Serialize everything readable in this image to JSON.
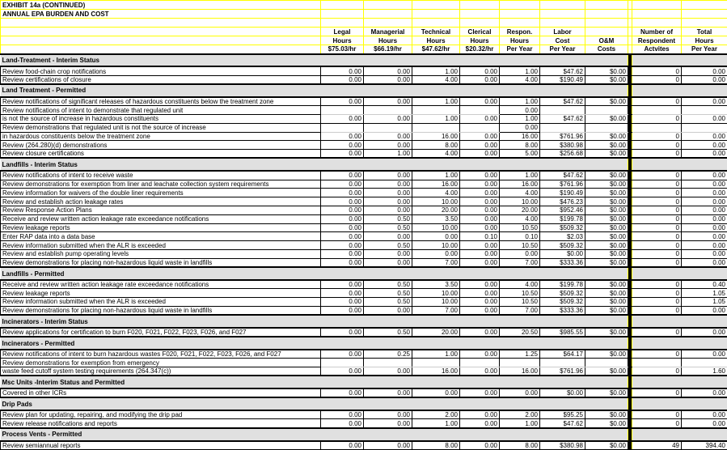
{
  "title": "EXHIBIT 14a (CONTINUED)",
  "subtitle": "ANNUAL EPA BURDEN AND COST",
  "columns": [
    [
      "Legal",
      "Hours",
      "$75.03/hr"
    ],
    [
      "Managerial",
      "Hours",
      "$66.19/hr"
    ],
    [
      "Technical",
      "Hours",
      "$47.62/hr"
    ],
    [
      "Clerical",
      "Hours",
      "$20.32/hr"
    ],
    [
      "Respon.",
      "Hours",
      "Per Year"
    ],
    [
      "Labor",
      "Cost",
      "Per Year"
    ],
    [
      "",
      "O&M",
      "Costs"
    ],
    [
      "Number of",
      "Respondent",
      "Actvites"
    ],
    [
      "Total",
      "Hours",
      "Per Year"
    ]
  ],
  "colors": {
    "grid": "#ffff00",
    "section_bg": "#e0e0e0",
    "border": "#000000"
  },
  "rows": [
    {
      "type": "section",
      "label": "Land-Treatment - Interim Status"
    },
    {
      "type": "item",
      "label": "Review food-chain crop notifications",
      "values": [
        "0.00",
        "0.00",
        "1.00",
        "0.00",
        "1.00",
        "$47.62",
        "$0.00",
        "0",
        "0.00"
      ]
    },
    {
      "type": "item",
      "label": "Review certifications of closure",
      "values": [
        "0.00",
        "0.00",
        "4.00",
        "0.00",
        "4.00",
        "$190.49",
        "$0.00",
        "0",
        "0.00"
      ]
    },
    {
      "type": "section",
      "label": "Land Treatment - Permitted"
    },
    {
      "type": "item",
      "label": "Review notifications of significant releases of hazardous constituents below the treatment zone",
      "values": [
        "0.00",
        "0.00",
        "1.00",
        "0.00",
        "1.00",
        "$47.62",
        "$0.00",
        "0",
        "0.00"
      ]
    },
    {
      "type": "item",
      "label": "Review notifications of intent to demonstrate that regulated unit",
      "values": [
        "",
        "",
        "",
        "",
        "0.00",
        "",
        "",
        "",
        ""
      ]
    },
    {
      "type": "item",
      "label": "is not the source of increase in hazardous constituents",
      "values": [
        "0.00",
        "0.00",
        "1.00",
        "0.00",
        "1.00",
        "$47.62",
        "$0.00",
        "0",
        "0.00"
      ]
    },
    {
      "type": "item",
      "label": "Review demonstrations that regulated unit is not the source of increase",
      "values": [
        "",
        "",
        "",
        "",
        "0.00",
        "",
        "",
        "",
        ""
      ]
    },
    {
      "type": "item",
      "label": "in hazardous constituents below the treatment zone",
      "values": [
        "0.00",
        "0.00",
        "16.00",
        "0.00",
        "16.00",
        "$761.96",
        "$0.00",
        "0",
        "0.00"
      ]
    },
    {
      "type": "item",
      "label": "Review (264.280)(d) demonstrations",
      "values": [
        "0.00",
        "0.00",
        "8.00",
        "0.00",
        "8.00",
        "$380.98",
        "$0.00",
        "0",
        "0.00"
      ]
    },
    {
      "type": "item",
      "label": "Review closure certifications",
      "values": [
        "0.00",
        "1.00",
        "4.00",
        "0.00",
        "5.00",
        "$256.68",
        "$0.00",
        "0",
        "0.00"
      ]
    },
    {
      "type": "section",
      "label": "Landfills - Interim Status"
    },
    {
      "type": "item",
      "label": "Review notifications of intent to receive waste",
      "values": [
        "0.00",
        "0.00",
        "1.00",
        "0.00",
        "1.00",
        "$47.62",
        "$0.00",
        "0",
        "0.00"
      ]
    },
    {
      "type": "item",
      "label": "Review demonstrations for exemption from liner and leachate collection system requirements",
      "values": [
        "0.00",
        "0.00",
        "16.00",
        "0.00",
        "16.00",
        "$761.96",
        "$0.00",
        "0",
        "0.00"
      ]
    },
    {
      "type": "item",
      "label": "Review information for waivers of the double liner requirements",
      "values": [
        "0.00",
        "0.00",
        "4.00",
        "0.00",
        "4.00",
        "$190.49",
        "$0.00",
        "0",
        "0.00"
      ]
    },
    {
      "type": "item",
      "label": "Review and establish action leakage rates",
      "values": [
        "0.00",
        "0.00",
        "10.00",
        "0.00",
        "10.00",
        "$476.23",
        "$0.00",
        "0",
        "0.00"
      ]
    },
    {
      "type": "item",
      "label": "Review Response Action Plans",
      "values": [
        "0.00",
        "0.00",
        "20.00",
        "0.00",
        "20.00",
        "$952.46",
        "$0.00",
        "0",
        "0.00"
      ]
    },
    {
      "type": "item",
      "label": "Receive and review written action leakage rate exceedance notifications",
      "values": [
        "0.00",
        "0.50",
        "3.50",
        "0.00",
        "4.00",
        "$199.78",
        "$0.00",
        "0",
        "0.00"
      ]
    },
    {
      "type": "item",
      "label": "Review leakage reports",
      "values": [
        "0.00",
        "0.50",
        "10.00",
        "0.00",
        "10.50",
        "$509.32",
        "$0.00",
        "0",
        "0.00"
      ]
    },
    {
      "type": "item",
      "label": "Enter RAP data into a data base",
      "values": [
        "0.00",
        "0.00",
        "0.00",
        "0.10",
        "0.10",
        "$2.03",
        "$0.00",
        "0",
        "0.00"
      ]
    },
    {
      "type": "item",
      "label": "Review information submitted when the ALR is exceeded",
      "values": [
        "0.00",
        "0.50",
        "10.00",
        "0.00",
        "10.50",
        "$509.32",
        "$0.00",
        "0",
        "0.00"
      ]
    },
    {
      "type": "item",
      "label": "Review and establish pump operating levels",
      "values": [
        "0.00",
        "0.00",
        "0.00",
        "0.00",
        "0.00",
        "$0.00",
        "$0.00",
        "0",
        "0.00"
      ]
    },
    {
      "type": "item",
      "label": "Review demonstrations for placing non-hazardous liquid waste in landfills",
      "values": [
        "0.00",
        "0.00",
        "7.00",
        "0.00",
        "7.00",
        "$333.36",
        "$0.00",
        "0",
        "0.00"
      ]
    },
    {
      "type": "section",
      "label": "Landfills - Permitted"
    },
    {
      "type": "item",
      "label": "Receive and review written action leakage rate exceedance notifications",
      "values": [
        "0.00",
        "0.50",
        "3.50",
        "0.00",
        "4.00",
        "$199.78",
        "$0.00",
        "0",
        "0.40"
      ]
    },
    {
      "type": "item",
      "label": "Review leakage reports",
      "values": [
        "0.00",
        "0.50",
        "10.00",
        "0.00",
        "10.50",
        "$509.32",
        "$0.00",
        "0",
        "1.05"
      ]
    },
    {
      "type": "item",
      "label": "Review information submitted when the ALR is exceeded",
      "values": [
        "0.00",
        "0.50",
        "10.00",
        "0.00",
        "10.50",
        "$509.32",
        "$0.00",
        "0",
        "1.05"
      ]
    },
    {
      "type": "item",
      "label": "Review demonstrations for placing non-hazardous liquid waste in landfills",
      "values": [
        "0.00",
        "0.00",
        "7.00",
        "0.00",
        "7.00",
        "$333.36",
        "$0.00",
        "0",
        "0.00"
      ]
    },
    {
      "type": "section",
      "label": "Incinerators - Interim Status"
    },
    {
      "type": "item",
      "label": "Review applications for certification to burn F020, F021, F022, F023, F026, and F027",
      "values": [
        "0.00",
        "0.50",
        "20.00",
        "0.00",
        "20.50",
        "$985.55",
        "$0.00",
        "0",
        "0.00"
      ]
    },
    {
      "type": "section",
      "label": "Incinerators - Permitted"
    },
    {
      "type": "item",
      "label": "Review notifications of intent to burn hazardous wastes F020, F021, F022, F023, F026, and F027",
      "values": [
        "0.00",
        "0.25",
        "1.00",
        "0.00",
        "1.25",
        "$64.17",
        "$0.00",
        "0",
        "0.00"
      ]
    },
    {
      "type": "item",
      "label": "Review demonstrations for exemption from emergency",
      "values": [
        "",
        "",
        "",
        "",
        "",
        "",
        "",
        "",
        ""
      ]
    },
    {
      "type": "item",
      "label": "waste feed cutoff system testing requirements (264.347(c))",
      "values": [
        "0.00",
        "0.00",
        "16.00",
        "0.00",
        "16.00",
        "$761.96",
        "$0.00",
        "0",
        "1.60"
      ]
    },
    {
      "type": "section",
      "label": "Msc Units -Interim Status and Permitted"
    },
    {
      "type": "item",
      "label": "Covered in other ICRs",
      "values": [
        "0.00",
        "0.00",
        "0.00",
        "0.00",
        "0.00",
        "$0.00",
        "$0.00",
        "0",
        "0.00"
      ]
    },
    {
      "type": "section",
      "label": "Drip Pads"
    },
    {
      "type": "item",
      "label": "Review plan for updating, repairing, and modifying the drip pad",
      "values": [
        "0.00",
        "0.00",
        "2.00",
        "0.00",
        "2.00",
        "$95.25",
        "$0.00",
        "0",
        "0.00"
      ]
    },
    {
      "type": "item",
      "label": "Review release notifications and reports",
      "values": [
        "0.00",
        "0.00",
        "1.00",
        "0.00",
        "1.00",
        "$47.62",
        "$0.00",
        "0",
        "0.00"
      ]
    },
    {
      "type": "section",
      "label": "Process Vents - Permitted"
    },
    {
      "type": "item",
      "label": "Review semiannual reports",
      "values": [
        "0.00",
        "0.00",
        "8.00",
        "0.00",
        "8.00",
        "$380.98",
        "$0.00",
        "49",
        "394.40"
      ]
    }
  ]
}
